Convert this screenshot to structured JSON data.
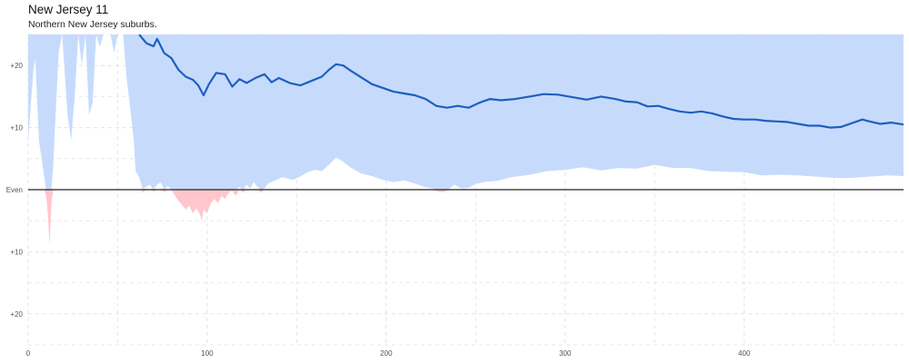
{
  "header": {
    "title": "New Jersey 11",
    "subtitle": "Northern New Jersey suburbs."
  },
  "colors": {
    "band_positive": "#c6dbfc",
    "band_negative": "#ffc6cc",
    "trend_line": "#1f5fbf",
    "baseline": "#222222",
    "grid": "#e3e3e3"
  },
  "chart_data": {
    "type": "line",
    "title": "New Jersey 11",
    "subtitle": "Northern New Jersey suburbs.",
    "xlabel": "",
    "ylabel": "",
    "xlim": [
      0,
      489
    ],
    "ylim": [
      -25,
      25
    ],
    "grid": true,
    "x_ticks": [
      {
        "value": 0,
        "label": "0"
      },
      {
        "value": 100,
        "label": "100"
      },
      {
        "value": 200,
        "label": "200"
      },
      {
        "value": 300,
        "label": "300"
      },
      {
        "value": 400,
        "label": "400"
      }
    ],
    "y_ticks": [
      {
        "value": 20,
        "label": "+20"
      },
      {
        "value": 10,
        "label": "+10"
      },
      {
        "value": 0,
        "label": "Even"
      },
      {
        "value": -10,
        "label": "+10"
      },
      {
        "value": -20,
        "label": "+20"
      }
    ],
    "series": [
      {
        "role": "estimate",
        "points": [
          [
            62,
            25
          ],
          [
            66,
            23.6
          ],
          [
            70,
            23.1
          ],
          [
            72,
            24.3
          ],
          [
            76,
            22.0
          ],
          [
            80,
            21.2
          ],
          [
            84,
            19.3
          ],
          [
            88,
            18.2
          ],
          [
            92,
            17.7
          ],
          [
            95,
            16.8
          ],
          [
            98,
            15.2
          ],
          [
            101,
            17.0
          ],
          [
            105,
            18.8
          ],
          [
            110,
            18.6
          ],
          [
            114,
            16.6
          ],
          [
            118,
            17.8
          ],
          [
            122,
            17.2
          ],
          [
            127,
            18.0
          ],
          [
            132,
            18.6
          ],
          [
            136,
            17.3
          ],
          [
            140,
            18.0
          ],
          [
            146,
            17.2
          ],
          [
            152,
            16.8
          ],
          [
            158,
            17.5
          ],
          [
            164,
            18.2
          ],
          [
            168,
            19.3
          ],
          [
            172,
            20.2
          ],
          [
            176,
            20.0
          ],
          [
            180,
            19.2
          ],
          [
            186,
            18.1
          ],
          [
            192,
            17.0
          ],
          [
            198,
            16.4
          ],
          [
            204,
            15.8
          ],
          [
            210,
            15.5
          ],
          [
            216,
            15.2
          ],
          [
            222,
            14.6
          ],
          [
            228,
            13.5
          ],
          [
            234,
            13.2
          ],
          [
            240,
            13.5
          ],
          [
            246,
            13.2
          ],
          [
            252,
            14.0
          ],
          [
            258,
            14.6
          ],
          [
            264,
            14.4
          ],
          [
            272,
            14.6
          ],
          [
            280,
            15.0
          ],
          [
            288,
            15.4
          ],
          [
            296,
            15.3
          ],
          [
            304,
            14.9
          ],
          [
            312,
            14.5
          ],
          [
            320,
            15.0
          ],
          [
            328,
            14.6
          ],
          [
            334,
            14.2
          ],
          [
            340,
            14.1
          ],
          [
            346,
            13.4
          ],
          [
            352,
            13.5
          ],
          [
            358,
            13.0
          ],
          [
            364,
            12.6
          ],
          [
            370,
            12.4
          ],
          [
            376,
            12.6
          ],
          [
            382,
            12.3
          ],
          [
            388,
            11.8
          ],
          [
            394,
            11.4
          ],
          [
            400,
            11.3
          ],
          [
            406,
            11.3
          ],
          [
            412,
            11.1
          ],
          [
            418,
            11.0
          ],
          [
            424,
            10.9
          ],
          [
            430,
            10.6
          ],
          [
            436,
            10.3
          ],
          [
            442,
            10.3
          ],
          [
            448,
            10.0
          ],
          [
            454,
            10.1
          ],
          [
            460,
            10.7
          ],
          [
            466,
            11.3
          ],
          [
            470,
            11.0
          ],
          [
            476,
            10.6
          ],
          [
            482,
            10.8
          ],
          [
            489,
            10.5
          ]
        ]
      },
      {
        "role": "band_upper",
        "points": [
          [
            0,
            25
          ],
          [
            489,
            25
          ]
        ]
      },
      {
        "role": "band_lower",
        "points": [
          [
            0,
            8.0
          ],
          [
            3,
            19.5
          ],
          [
            4,
            21.0
          ],
          [
            6,
            8.0
          ],
          [
            7,
            6.0
          ],
          [
            9,
            2.0
          ],
          [
            10,
            -1.0
          ],
          [
            11,
            -4.0
          ],
          [
            12,
            -9.0
          ],
          [
            13,
            -2.0
          ],
          [
            14,
            4.0
          ],
          [
            15,
            10.0
          ],
          [
            17,
            22.0
          ],
          [
            19,
            25.0
          ],
          [
            22,
            12.0
          ],
          [
            24,
            8.0
          ],
          [
            26,
            15.0
          ],
          [
            28,
            25.0
          ],
          [
            30,
            20.0
          ],
          [
            32,
            25.0
          ],
          [
            34,
            12.0
          ],
          [
            36,
            14.0
          ],
          [
            38,
            25.0
          ],
          [
            40,
            23.0
          ],
          [
            42,
            25.0
          ],
          [
            44,
            25.0
          ],
          [
            46,
            25.0
          ],
          [
            48,
            22.0
          ],
          [
            50,
            25.0
          ],
          [
            53,
            25.0
          ],
          [
            55,
            18.0
          ],
          [
            57,
            13.0
          ],
          [
            59,
            8.0
          ],
          [
            60,
            3.0
          ],
          [
            62,
            2.0
          ],
          [
            63,
            1.0
          ],
          [
            64,
            -0.5
          ],
          [
            66,
            0.5
          ],
          [
            68,
            0.8
          ],
          [
            70,
            -0.3
          ],
          [
            72,
            0.8
          ],
          [
            74,
            1.2
          ],
          [
            76,
            -0.4
          ],
          [
            78,
            0.6
          ],
          [
            80,
            0.0
          ],
          [
            82,
            -1.0
          ],
          [
            84,
            -1.8
          ],
          [
            86,
            -2.5
          ],
          [
            88,
            -3.2
          ],
          [
            90,
            -2.6
          ],
          [
            92,
            -3.8
          ],
          [
            94,
            -3.0
          ],
          [
            96,
            -4.0
          ],
          [
            97,
            -5.0
          ],
          [
            98,
            -3.2
          ],
          [
            100,
            -3.8
          ],
          [
            102,
            -2.2
          ],
          [
            104,
            -1.5
          ],
          [
            106,
            -2.2
          ],
          [
            108,
            -1.0
          ],
          [
            110,
            -1.5
          ],
          [
            112,
            -0.5
          ],
          [
            114,
            -0.2
          ],
          [
            116,
            -1.0
          ],
          [
            118,
            0.4
          ],
          [
            120,
            -0.5
          ],
          [
            122,
            0.8
          ],
          [
            124,
            0.2
          ],
          [
            126,
            1.2
          ],
          [
            128,
            0.5
          ],
          [
            130,
            -0.5
          ],
          [
            132,
            0.2
          ],
          [
            134,
            1.0
          ],
          [
            138,
            1.5
          ],
          [
            142,
            2.0
          ],
          [
            148,
            1.6
          ],
          [
            152,
            2.1
          ],
          [
            156,
            2.8
          ],
          [
            160,
            3.2
          ],
          [
            164,
            3.0
          ],
          [
            168,
            4.0
          ],
          [
            172,
            5.2
          ],
          [
            176,
            4.5
          ],
          [
            180,
            3.6
          ],
          [
            186,
            2.6
          ],
          [
            192,
            2.2
          ],
          [
            198,
            1.6
          ],
          [
            204,
            1.2
          ],
          [
            210,
            1.5
          ],
          [
            216,
            1.0
          ],
          [
            222,
            0.4
          ],
          [
            226,
            0.2
          ],
          [
            229,
            -0.3
          ],
          [
            232,
            -0.4
          ],
          [
            235,
            0.1
          ],
          [
            238,
            0.8
          ],
          [
            242,
            0.2
          ],
          [
            246,
            0.3
          ],
          [
            250,
            0.9
          ],
          [
            256,
            1.3
          ],
          [
            262,
            1.4
          ],
          [
            270,
            2.0
          ],
          [
            280,
            2.4
          ],
          [
            290,
            3.0
          ],
          [
            300,
            3.2
          ],
          [
            310,
            3.6
          ],
          [
            320,
            3.1
          ],
          [
            330,
            3.5
          ],
          [
            340,
            3.4
          ],
          [
            350,
            4.0
          ],
          [
            360,
            3.5
          ],
          [
            370,
            3.5
          ],
          [
            380,
            3.0
          ],
          [
            390,
            2.9
          ],
          [
            400,
            2.8
          ],
          [
            410,
            2.3
          ],
          [
            420,
            2.4
          ],
          [
            430,
            2.3
          ],
          [
            440,
            2.1
          ],
          [
            450,
            1.9
          ],
          [
            460,
            1.9
          ],
          [
            470,
            2.1
          ],
          [
            480,
            2.3
          ],
          [
            489,
            2.2
          ]
        ]
      }
    ]
  }
}
